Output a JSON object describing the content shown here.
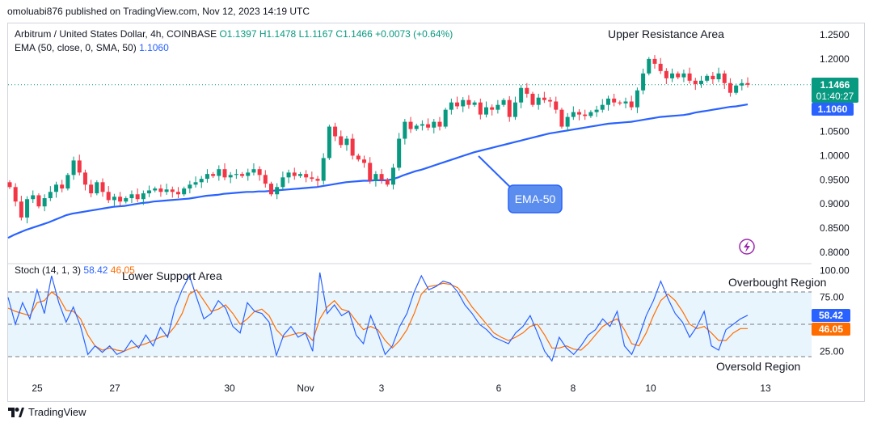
{
  "header": {
    "text": "omoluabi876 published on TradingView.com, Nov 12, 2023 14:19 UTC"
  },
  "legend": {
    "symbol": "Arbitrum / United States Dollar, 4h, COINBASE",
    "open": "O1.1397",
    "high": "H1.1478",
    "low": "L1.1167",
    "close": "C1.1466",
    "change": "+0.0073 (+0.64%)",
    "ema_label": "EMA (50, close, 0, SMA, 50)",
    "ema_value": "1.1060"
  },
  "stoch_legend": {
    "label": "Stoch (14, 1, 3)",
    "k_value": "58.42",
    "d_value": "46.05"
  },
  "annotations": {
    "upper_resistance": "Upper Resistance Area",
    "lower_support": "Lower Support Area",
    "ema_callout": "EMA-50",
    "overbought": "Overbought Region",
    "oversold": "Oversold Region"
  },
  "price_labels": {
    "last_price": "1.1466",
    "countdown": "01:40:27",
    "ema_price": "1.1060"
  },
  "stoch_labels": {
    "k": "58.42",
    "d": "46.05"
  },
  "footer": {
    "brand": "TradingView"
  },
  "colors": {
    "up": "#089981",
    "down": "#f23645",
    "ema": "#2962ff",
    "stoch_k": "#2962ff",
    "stoch_d": "#ff6d00",
    "band": "#e3f2fd"
  },
  "chart_data": [
    {
      "type": "candlestick",
      "title": "Arbitrum / United States Dollar, 4h, COINBASE",
      "ylim": [
        0.78,
        1.26
      ],
      "y_ticks": [
        "1.2500",
        "1.2000",
        "1.1500",
        "1.1000",
        "1.0500",
        "1.0000",
        "0.9500",
        "0.9000",
        "0.8500",
        "0.8000"
      ],
      "x_ticks": [
        "25",
        "27",
        "30",
        "Nov",
        "3",
        "6",
        "8",
        "10",
        "13"
      ],
      "last_close": 1.1466,
      "series": [
        {
          "name": "candles",
          "close": [
            0.935,
            0.905,
            0.872,
            0.91,
            0.918,
            0.895,
            0.912,
            0.925,
            0.94,
            0.932,
            0.96,
            0.99,
            0.965,
            0.94,
            0.922,
            0.945,
            0.925,
            0.908,
            0.915,
            0.905,
            0.912,
            0.92,
            0.91,
            0.922,
            0.928,
            0.932,
            0.925,
            0.93,
            0.925,
            0.92,
            0.932,
            0.94,
            0.945,
            0.952,
            0.962,
            0.958,
            0.972,
            0.955,
            0.96,
            0.962,
            0.958,
            0.965,
            0.972,
            0.96,
            0.942,
            0.92,
            0.935,
            0.955,
            0.965,
            0.958,
            0.962,
            0.955,
            0.952,
            0.948,
            0.995,
            1.06,
            1.04,
            1.022,
            1.035,
            1.0,
            0.992,
            0.985,
            0.948,
            0.962,
            0.95,
            0.94,
            0.975,
            1.035,
            1.07,
            1.055,
            1.062,
            1.065,
            1.058,
            1.07,
            1.06,
            1.095,
            1.11,
            1.102,
            1.115,
            1.105,
            1.11,
            1.085,
            1.1,
            1.095,
            1.105,
            1.115,
            1.08,
            1.11,
            1.14,
            1.128,
            1.105,
            1.12,
            1.115,
            1.112,
            1.095,
            1.06,
            1.08,
            1.09,
            1.085,
            1.082,
            1.09,
            1.095,
            1.105,
            1.118,
            1.11,
            1.108,
            1.112,
            1.1,
            1.135,
            1.17,
            1.2,
            1.19,
            1.175,
            1.16,
            1.17,
            1.162,
            1.17,
            1.155,
            1.148,
            1.155,
            1.165,
            1.158,
            1.17,
            1.15,
            1.13,
            1.145,
            1.15,
            1.1466
          ]
        },
        {
          "name": "EMA-50",
          "values": [
            0.83,
            0.836,
            0.841,
            0.846,
            0.85,
            0.854,
            0.858,
            0.862,
            0.867,
            0.872,
            0.877,
            0.88,
            0.882,
            0.884,
            0.886,
            0.888,
            0.89,
            0.892,
            0.894,
            0.895,
            0.896,
            0.898,
            0.9,
            0.902,
            0.903,
            0.905,
            0.906,
            0.907,
            0.908,
            0.909,
            0.91,
            0.911,
            0.913,
            0.915,
            0.917,
            0.918,
            0.919,
            0.921,
            0.922,
            0.923,
            0.924,
            0.925,
            0.925,
            0.926,
            0.926,
            0.927,
            0.928,
            0.929,
            0.93,
            0.931,
            0.932,
            0.933,
            0.934,
            0.935,
            0.937,
            0.939,
            0.941,
            0.943,
            0.945,
            0.946,
            0.947,
            0.948,
            0.948,
            0.949,
            0.949,
            0.949,
            0.951,
            0.955,
            0.96,
            0.964,
            0.968,
            0.971,
            0.975,
            0.979,
            0.983,
            0.987,
            0.991,
            0.995,
            0.999,
            1.003,
            1.007,
            1.01,
            1.013,
            1.016,
            1.019,
            1.022,
            1.025,
            1.028,
            1.031,
            1.034,
            1.037,
            1.04,
            1.043,
            1.046,
            1.048,
            1.05,
            1.052,
            1.054,
            1.056,
            1.058,
            1.06,
            1.062,
            1.064,
            1.066,
            1.067,
            1.068,
            1.069,
            1.07,
            1.072,
            1.074,
            1.076,
            1.078,
            1.08,
            1.081,
            1.082,
            1.083,
            1.084,
            1.086,
            1.089,
            1.091,
            1.093,
            1.095,
            1.097,
            1.099,
            1.101,
            1.102,
            1.104,
            1.106
          ]
        }
      ]
    },
    {
      "type": "line",
      "title": "Stoch (14, 1, 3)",
      "ylim": [
        0,
        100
      ],
      "y_ticks": [
        "100.00",
        "75.00",
        "25.00"
      ],
      "bands": [
        80,
        50,
        20
      ],
      "series": [
        {
          "name": "%K",
          "values": [
            75,
            50,
            70,
            55,
            82,
            60,
            95,
            70,
            52,
            66,
            48,
            22,
            30,
            24,
            30,
            22,
            25,
            35,
            28,
            40,
            30,
            47,
            38,
            65,
            82,
            95,
            75,
            55,
            60,
            72,
            65,
            48,
            42,
            70,
            62,
            60,
            52,
            21,
            40,
            48,
            38,
            42,
            25,
            98,
            60,
            68,
            58,
            62,
            40,
            32,
            58,
            42,
            22,
            30,
            48,
            60,
            80,
            95,
            82,
            85,
            90,
            88,
            80,
            68,
            60,
            50,
            45,
            38,
            35,
            32,
            42,
            48,
            58,
            42,
            25,
            16,
            38,
            28,
            22,
            30,
            40,
            45,
            55,
            48,
            62,
            30,
            22,
            38,
            58,
            72,
            90,
            74,
            60,
            52,
            38,
            48,
            62,
            30,
            26,
            45,
            50,
            55,
            58.42
          ]
        },
        {
          "name": "%D",
          "values": [
            65,
            62,
            60,
            58,
            70,
            72,
            80,
            75,
            63,
            62,
            55,
            40,
            30,
            26,
            28,
            26,
            25,
            28,
            30,
            32,
            35,
            38,
            40,
            48,
            60,
            78,
            82,
            72,
            62,
            64,
            68,
            60,
            50,
            55,
            62,
            64,
            58,
            45,
            38,
            40,
            42,
            42,
            35,
            55,
            66,
            72,
            64,
            62,
            53,
            45,
            48,
            45,
            35,
            28,
            35,
            45,
            60,
            78,
            85,
            86,
            88,
            87,
            84,
            76,
            66,
            58,
            50,
            42,
            38,
            35,
            38,
            42,
            48,
            50,
            40,
            28,
            28,
            30,
            27,
            26,
            32,
            40,
            48,
            52,
            55,
            45,
            32,
            30,
            42,
            58,
            72,
            78,
            72,
            62,
            50,
            46,
            48,
            42,
            35,
            35,
            42,
            46,
            46.05
          ]
        }
      ]
    }
  ]
}
